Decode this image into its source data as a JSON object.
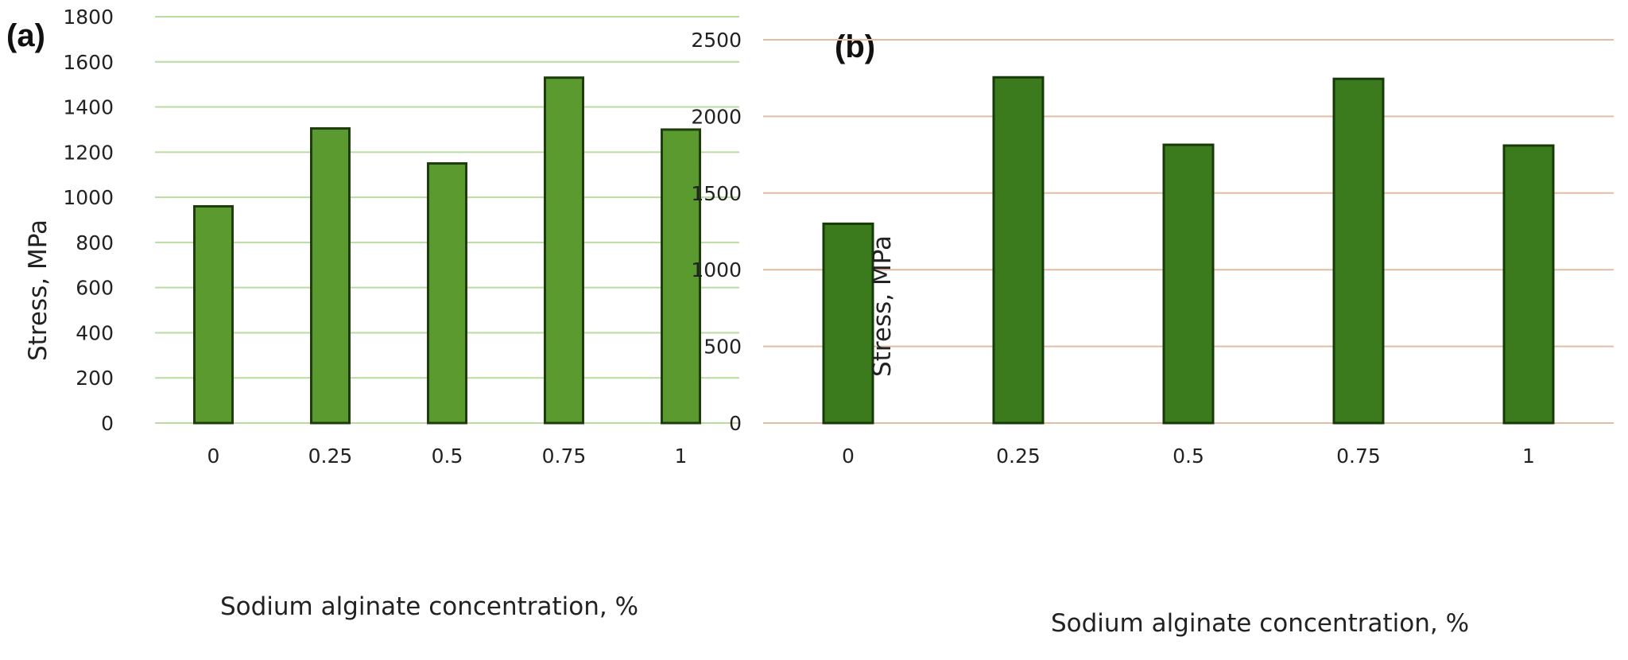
{
  "chart_data": [
    {
      "type": "bar",
      "panel_label": "(a)",
      "categories": [
        "0",
        "0.25",
        "0.5",
        "0.75",
        "1"
      ],
      "values": [
        960,
        1305,
        1150,
        1530,
        1300
      ],
      "xlabel": "Sodium alginate concentration, %",
      "ylabel": "Stress, MPa",
      "ylim": [
        0,
        1800
      ],
      "yticks": [
        "0",
        "200",
        "400",
        "600",
        "800",
        "1000",
        "1200",
        "1400",
        "1600",
        "1800"
      ],
      "grid": true,
      "legend": "none",
      "colors": {
        "bar": "#5a9a2f",
        "bar_edge": "#1f3d0c",
        "grid": "#b9dca0"
      }
    },
    {
      "type": "bar",
      "panel_label": "(b)",
      "categories": [
        "0",
        "0.25",
        "0.5",
        "0.75",
        "1"
      ],
      "values": [
        1300,
        2255,
        1815,
        2245,
        1810
      ],
      "xlabel": "Sodium alginate concentration, %",
      "ylabel": "Stress, MPa",
      "ylim": [
        0,
        2500
      ],
      "yticks": [
        "0",
        "500",
        "1000",
        "1500",
        "2000",
        "2500"
      ],
      "grid": true,
      "legend": "none",
      "colors": {
        "bar": "#3c7a1e",
        "bar_edge": "#163a08",
        "grid": "#e3bca2"
      }
    }
  ]
}
